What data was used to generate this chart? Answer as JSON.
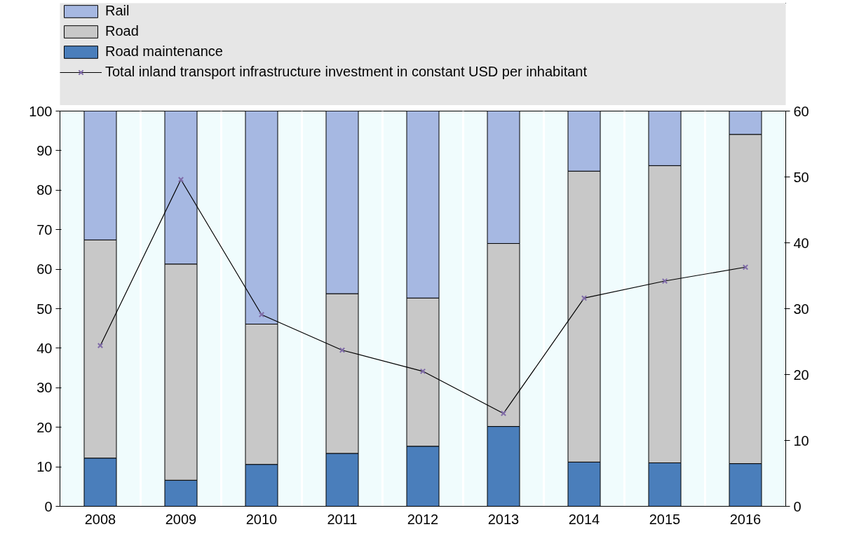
{
  "chart_data": {
    "type": "bar",
    "stacked": true,
    "categories": [
      "2008",
      "2009",
      "2010",
      "2011",
      "2012",
      "2013",
      "2014",
      "2015",
      "2016"
    ],
    "series": [
      {
        "name": "Road maintenance",
        "color": "#4a7ebb",
        "values": [
          12.2,
          6.6,
          10.6,
          13.4,
          15.2,
          20.2,
          11.2,
          11.0,
          10.8
        ]
      },
      {
        "name": "Road",
        "color": "#c8c8c8",
        "values": [
          55.2,
          54.7,
          35.5,
          40.4,
          37.5,
          46.3,
          73.6,
          75.2,
          83.3
        ]
      },
      {
        "name": "Rail",
        "color": "#a6b8e2",
        "values": [
          32.6,
          38.7,
          53.9,
          46.2,
          47.3,
          33.5,
          15.2,
          13.8,
          5.9
        ]
      },
      {
        "name": "Total inland transport infrastructure investment in constant USD per inhabitant",
        "type": "line",
        "axis": "y2",
        "color": "#000000",
        "marker": "cross",
        "values": [
          24.4,
          49.6,
          29.1,
          23.7,
          20.5,
          14.1,
          31.6,
          34.2,
          36.3
        ]
      }
    ],
    "ylim": [
      0,
      100
    ],
    "yticks": [
      0,
      10,
      20,
      30,
      40,
      50,
      60,
      70,
      80,
      90,
      100
    ],
    "y2lim": [
      0,
      60
    ],
    "y2ticks": [
      0,
      10,
      20,
      30,
      40,
      50,
      60
    ],
    "grid": "x",
    "legend": "top"
  }
}
